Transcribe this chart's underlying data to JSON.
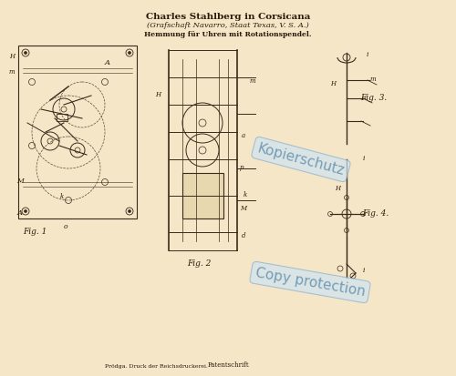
{
  "bg_color": "#f5e6c8",
  "title_line1": "Charles Stahlberg in Corsicana",
  "title_line2": "(Grafschaft Navarro, Staat Texas, V. S. A.)",
  "title_line3": "Hemmung für Uhren mit Rotationspendel.",
  "fig_label1": "Fig. 1",
  "fig_label2": "Fig. 2",
  "fig_label3": "Fig. 3.",
  "fig_label4": "Fig. 4.",
  "watermark1": "Kopierschutz",
  "watermark2": "Copy protection",
  "footer": "Patentschrift",
  "line_color": "#3a2a1a",
  "dashed_color": "#5a4a3a",
  "text_color": "#2a1a0a",
  "watermark_color": "#b0c8e0"
}
